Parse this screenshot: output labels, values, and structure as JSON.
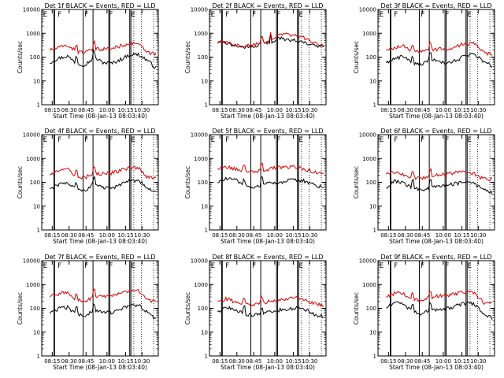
{
  "figure": {
    "title": ""
  },
  "common": {
    "xlabel": "Start Time (08-Jan-13 08:03:40)",
    "ylabel": "Counts/sec",
    "x_ticks": [
      "08:15",
      "08:30",
      "08:45",
      "10:00",
      "10:15",
      "10:30"
    ],
    "y_ticks": [
      "1",
      "10",
      "100",
      "1000",
      "10000"
    ],
    "y_scale": "log",
    "ylim": [
      1,
      10000
    ],
    "flag_letters": [
      "E",
      "F",
      "F",
      "F",
      "E"
    ],
    "series": [
      {
        "name": "BLACK = Events",
        "color": "#000000"
      },
      {
        "name": "RED = LLD",
        "color": "#dd0000"
      }
    ]
  },
  "chart_data": [
    {
      "type": "line",
      "title": "Det 1f BLACK = Events, RED = LLD",
      "xlabel": "Start Time (08-Jan-13 08:03:40)",
      "ylabel": "Counts/sec",
      "y_scale": "log",
      "ylim": [
        1,
        10000
      ],
      "x_ticks": [
        "08:15",
        "08:30",
        "08:45",
        "10:00",
        "10:15",
        "10:30"
      ],
      "series": [
        {
          "name": "BLACK = Events",
          "color": "#000000",
          "levels": [
            60,
            90,
            110,
            55,
            48,
            95,
            60,
            55,
            80,
            125,
            130,
            75,
            35
          ],
          "spikes": [
            3,
            5
          ]
        },
        {
          "name": "RED = LLD",
          "color": "#dd0000",
          "levels": [
            200,
            250,
            320,
            170,
            160,
            210,
            220,
            230,
            300,
            380,
            380,
            150,
            140
          ],
          "spikes": [
            3,
            5
          ]
        }
      ]
    },
    {
      "type": "line",
      "title": "Det 2f BLACK = Events, RED = LLD",
      "xlabel": "Start Time (08-Jan-13 08:03:40)",
      "ylabel": "Counts/sec",
      "y_scale": "log",
      "ylim": [
        1,
        10000
      ],
      "x_ticks": [
        "08:15",
        "08:30",
        "08:45",
        "10:00",
        "10:15",
        "10:30"
      ],
      "series": [
        {
          "name": "BLACK = Events",
          "color": "#000000",
          "levels": [
            400,
            380,
            300,
            260,
            280,
            380,
            420,
            650,
            550,
            480,
            380,
            300,
            260
          ],
          "spikes": [
            5,
            6
          ]
        },
        {
          "name": "RED = LLD",
          "color": "#dd0000",
          "levels": [
            420,
            400,
            330,
            300,
            320,
            420,
            500,
            1000,
            900,
            800,
            600,
            380,
            300
          ],
          "spikes": [
            5,
            6
          ]
        }
      ]
    },
    {
      "type": "line",
      "title": "Det 3f BLACK = Events, RED = LLD",
      "xlabel": "Start Time (08-Jan-13 08:03:40)",
      "ylabel": "Counts/sec",
      "y_scale": "log",
      "ylim": [
        1,
        10000
      ],
      "x_ticks": [
        "08:15",
        "08:30",
        "08:45",
        "10:00",
        "10:15",
        "10:30"
      ],
      "series": [
        {
          "name": "BLACK = Events",
          "color": "#000000",
          "levels": [
            60,
            90,
            110,
            55,
            48,
            85,
            60,
            55,
            75,
            120,
            130,
            70,
            40
          ],
          "spikes": [
            3,
            5
          ]
        },
        {
          "name": "RED = LLD",
          "color": "#dd0000",
          "levels": [
            200,
            250,
            320,
            170,
            160,
            210,
            220,
            230,
            300,
            370,
            380,
            150,
            140
          ],
          "spikes": [
            3,
            5
          ]
        }
      ]
    },
    {
      "type": "line",
      "title": "Det 4f BLACK = Events, RED = LLD",
      "xlabel": "Start Time (08-Jan-13 08:03:40)",
      "ylabel": "Counts/sec",
      "y_scale": "log",
      "ylim": [
        1,
        10000
      ],
      "x_ticks": [
        "08:15",
        "08:30",
        "08:45",
        "10:00",
        "10:15",
        "10:30"
      ],
      "series": [
        {
          "name": "BLACK = Events",
          "color": "#000000",
          "levels": [
            55,
            80,
            100,
            50,
            45,
            90,
            60,
            55,
            80,
            120,
            125,
            60,
            35
          ],
          "spikes": [
            3,
            5
          ]
        },
        {
          "name": "RED = LLD",
          "color": "#dd0000",
          "levels": [
            220,
            280,
            360,
            180,
            160,
            230,
            240,
            250,
            320,
            400,
            420,
            160,
            150
          ],
          "spikes": [
            3,
            5
          ]
        }
      ]
    },
    {
      "type": "line",
      "title": "Det 5f BLACK = Events, RED = LLD",
      "xlabel": "Start Time (08-Jan-13 08:03:40)",
      "ylabel": "Counts/sec",
      "y_scale": "log",
      "ylim": [
        1,
        10000
      ],
      "x_ticks": [
        "08:15",
        "08:30",
        "08:45",
        "10:00",
        "10:15",
        "10:30"
      ],
      "series": [
        {
          "name": "BLACK = Events",
          "color": "#000000",
          "levels": [
            100,
            140,
            130,
            70,
            60,
            80,
            90,
            100,
            120,
            130,
            110,
            80,
            60
          ],
          "spikes": [
            3,
            5
          ]
        },
        {
          "name": "RED = LLD",
          "color": "#dd0000",
          "levels": [
            400,
            450,
            380,
            300,
            290,
            320,
            380,
            420,
            450,
            430,
            350,
            260,
            250
          ],
          "spikes": [
            3,
            5
          ]
        }
      ]
    },
    {
      "type": "line",
      "title": "Det 6f BLACK = Events, RED = LLD",
      "xlabel": "Start Time (08-Jan-13 08:03:40)",
      "ylabel": "Counts/sec",
      "y_scale": "log",
      "ylim": [
        1,
        10000
      ],
      "x_ticks": [
        "08:15",
        "08:30",
        "08:45",
        "10:00",
        "10:15",
        "10:30"
      ],
      "series": [
        {
          "name": "BLACK = Events",
          "color": "#000000",
          "levels": [
            60,
            120,
            90,
            60,
            50,
            60,
            70,
            80,
            90,
            110,
            90,
            50,
            35
          ],
          "spikes": [
            3,
            5
          ]
        },
        {
          "name": "RED = LLD",
          "color": "#dd0000",
          "levels": [
            220,
            260,
            200,
            160,
            150,
            180,
            200,
            230,
            260,
            280,
            220,
            140,
            130
          ],
          "spikes": [
            3,
            5
          ]
        }
      ]
    },
    {
      "type": "line",
      "title": "Det 7f BLACK = Events, RED = LLD",
      "xlabel": "Start Time (08-Jan-13 08:03:40)",
      "ylabel": "Counts/sec",
      "y_scale": "log",
      "ylim": [
        1,
        10000
      ],
      "x_ticks": [
        "08:15",
        "08:30",
        "08:45",
        "10:00",
        "10:15",
        "10:30"
      ],
      "series": [
        {
          "name": "BLACK = Events",
          "color": "#000000",
          "levels": [
            60,
            100,
            110,
            55,
            48,
            90,
            70,
            65,
            90,
            130,
            140,
            70,
            35
          ],
          "spikes": [
            3,
            5
          ]
        },
        {
          "name": "RED = LLD",
          "color": "#dd0000",
          "levels": [
            300,
            400,
            500,
            220,
            200,
            300,
            300,
            320,
            420,
            520,
            550,
            210,
            200
          ],
          "spikes": [
            3,
            5
          ]
        }
      ]
    },
    {
      "type": "line",
      "title": "Det 8f BLACK = Events, RED = LLD",
      "xlabel": "Start Time (08-Jan-13 08:03:40)",
      "ylabel": "Counts/sec",
      "y_scale": "log",
      "ylim": [
        1,
        10000
      ],
      "x_ticks": [
        "08:15",
        "08:30",
        "08:45",
        "10:00",
        "10:15",
        "10:30"
      ],
      "series": [
        {
          "name": "BLACK = Events",
          "color": "#000000",
          "levels": [
            70,
            110,
            90,
            60,
            50,
            60,
            75,
            85,
            95,
            110,
            85,
            55,
            45
          ],
          "spikes": [
            3,
            5
          ]
        },
        {
          "name": "RED = LLD",
          "color": "#dd0000",
          "levels": [
            200,
            250,
            190,
            150,
            140,
            170,
            200,
            230,
            260,
            280,
            220,
            150,
            140
          ],
          "spikes": [
            3,
            5
          ]
        }
      ]
    },
    {
      "type": "line",
      "title": "Det 9f BLACK = Events, RED = LLD",
      "xlabel": "Start Time (08-Jan-13 08:03:40)",
      "ylabel": "Counts/sec",
      "y_scale": "log",
      "ylim": [
        1,
        10000
      ],
      "x_ticks": [
        "08:15",
        "08:30",
        "08:45",
        "10:00",
        "10:15",
        "10:30"
      ],
      "series": [
        {
          "name": "BLACK = Events",
          "color": "#000000",
          "levels": [
            100,
            180,
            150,
            70,
            60,
            85,
            90,
            100,
            130,
            170,
            150,
            60,
            40
          ],
          "spikes": [
            3,
            5
          ]
        },
        {
          "name": "RED = LLD",
          "color": "#dd0000",
          "levels": [
            300,
            450,
            400,
            250,
            220,
            300,
            330,
            360,
            420,
            500,
            450,
            180,
            160
          ],
          "spikes": [
            3,
            5
          ]
        }
      ]
    }
  ]
}
